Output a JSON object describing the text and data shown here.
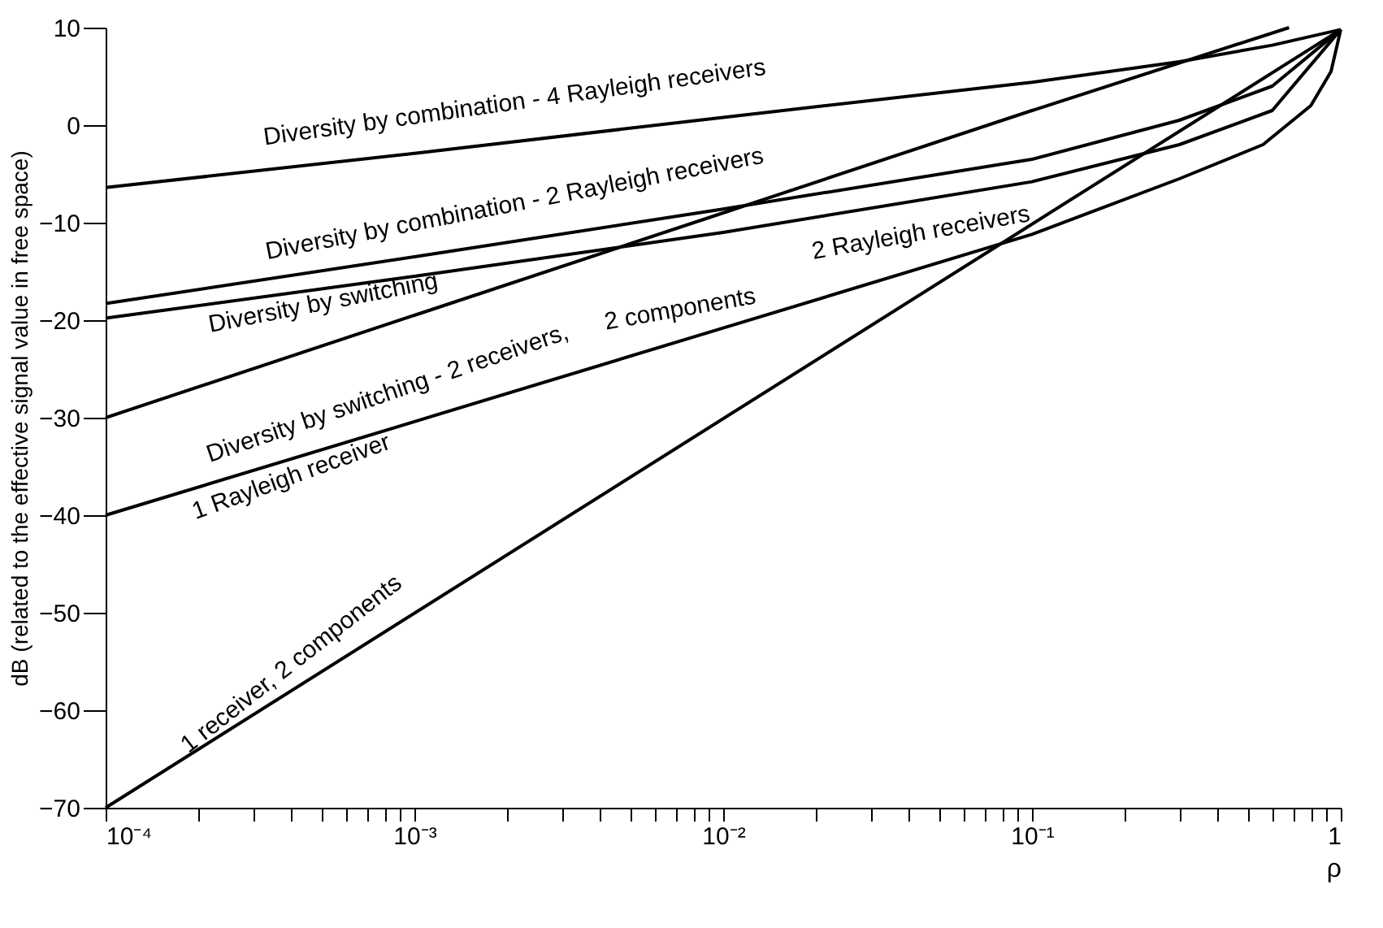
{
  "chart_data": {
    "type": "line",
    "xlabel": "ρ",
    "ylabel": "dB (related to the effective signal value in free space)",
    "log": "x",
    "grid": false,
    "marker": "none",
    "line_style": "solid",
    "xlim": [
      0.0001,
      1
    ],
    "ylim": [
      -70,
      10
    ],
    "xticks": [
      {
        "value": 0.0001,
        "label": "10⁻⁴"
      },
      {
        "value": 0.0002,
        "label": null
      },
      {
        "value": 0.0003,
        "label": null
      },
      {
        "value": 0.0004,
        "label": null
      },
      {
        "value": 0.0005,
        "label": null
      },
      {
        "value": 0.0006,
        "label": null
      },
      {
        "value": 0.0007,
        "label": null
      },
      {
        "value": 0.0008,
        "label": null
      },
      {
        "value": 0.0009,
        "label": null
      },
      {
        "value": 0.001,
        "label": "10⁻³"
      },
      {
        "value": 0.002,
        "label": null
      },
      {
        "value": 0.003,
        "label": null
      },
      {
        "value": 0.004,
        "label": null
      },
      {
        "value": 0.005,
        "label": null
      },
      {
        "value": 0.006,
        "label": null
      },
      {
        "value": 0.007,
        "label": null
      },
      {
        "value": 0.008,
        "label": null
      },
      {
        "value": 0.009,
        "label": null
      },
      {
        "value": 0.01,
        "label": "10⁻²"
      },
      {
        "value": 0.02,
        "label": null
      },
      {
        "value": 0.03,
        "label": null
      },
      {
        "value": 0.04,
        "label": null
      },
      {
        "value": 0.05,
        "label": null
      },
      {
        "value": 0.06,
        "label": null
      },
      {
        "value": 0.07,
        "label": null
      },
      {
        "value": 0.08,
        "label": null
      },
      {
        "value": 0.09,
        "label": null
      },
      {
        "value": 0.1,
        "label": "10⁻¹"
      },
      {
        "value": 0.2,
        "label": null
      },
      {
        "value": 0.3,
        "label": null
      },
      {
        "value": 0.4,
        "label": null
      },
      {
        "value": 0.5,
        "label": null
      },
      {
        "value": 0.6,
        "label": null
      },
      {
        "value": 0.7,
        "label": null
      },
      {
        "value": 0.8,
        "label": null
      },
      {
        "value": 0.9,
        "label": null
      },
      {
        "value": 1,
        "label": "1"
      }
    ],
    "yticks": [
      -70,
      -60,
      -50,
      -40,
      -30,
      -20,
      -10,
      0,
      10
    ],
    "series": [
      {
        "color": "#000000",
        "x": [
          0.0001,
          0.001,
          0.01,
          0.1,
          0.3,
          0.6,
          1
        ],
        "values": [
          -6.4,
          -2.9,
          0.8,
          4.4,
          6.5,
          8.2,
          9.8
        ]
      },
      {
        "color": "#000000",
        "x": [
          0.0001,
          0.001,
          0.01,
          0.1,
          0.3,
          0.6,
          1
        ],
        "values": [
          -18.3,
          -13.5,
          -8.6,
          -3.5,
          0.5,
          4,
          9.8
        ]
      },
      {
        "color": "#000000",
        "x": [
          0.0001,
          0.001,
          0.01,
          0.1,
          0.3,
          0.6,
          1
        ],
        "values": [
          -19.8,
          -15.5,
          -11,
          -5.8,
          -2,
          1.5,
          9.8
        ]
      },
      {
        "color": "#000000",
        "x": [
          0.0001,
          0.001,
          0.01,
          0.1,
          0.68
        ],
        "values": [
          -30,
          -19.5,
          -9,
          1.5,
          10
        ]
      },
      {
        "color": "#000000",
        "x": [
          0.0001,
          0.001,
          0.01,
          0.1,
          0.3,
          0.56,
          0.8,
          0.93,
          1
        ],
        "values": [
          -40,
          -30.4,
          -20.8,
          -11.2,
          -5.5,
          -2,
          2,
          5.5,
          9.8
        ]
      },
      {
        "color": "#000000",
        "x": [
          0.0001,
          1
        ],
        "values": [
          -70,
          9.8
        ]
      }
    ],
    "annotations": [
      "Diversity by combination - 4 Rayleigh receivers",
      "Diversity by combination - 2 Rayleigh receivers",
      "Diversity by switching",
      "Diversity by switching - 2 receivers,",
      "2 components",
      "2 Rayleigh receivers",
      "1 Rayleigh receiver",
      "1 receiver, 2 components"
    ]
  }
}
